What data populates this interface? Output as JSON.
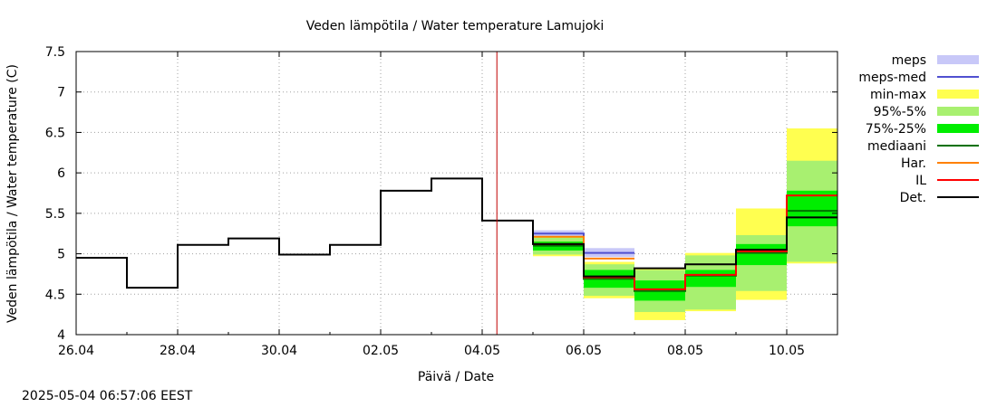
{
  "chart_data": {
    "type": "line",
    "title": "Veden lämpötila / Water temperature Lamujoki",
    "xlabel": "Päivä / Date",
    "ylabel": "Veden lämpötila / Water temperature (C)",
    "ylim": [
      4,
      7.5
    ],
    "xlim": [
      "2025-04-26",
      "2025-05-11"
    ],
    "x_tick_labels": [
      "26.04",
      "28.04",
      "30.04",
      "02.05",
      "04.05",
      "06.05",
      "08.05",
      "10.05"
    ],
    "x_tick_dates": [
      "2025-04-26",
      "2025-04-28",
      "2025-04-30",
      "2025-05-02",
      "2025-05-04",
      "2025-05-06",
      "2025-05-08",
      "2025-05-10"
    ],
    "y_ticks": [
      4,
      4.5,
      5,
      5.5,
      6,
      6.5,
      7,
      7.5
    ],
    "y_tick_labels": [
      "4",
      "4.5",
      "5",
      "5.5",
      "6",
      "6.5",
      "7",
      "7.5"
    ],
    "grid": true,
    "now_marker": "2025-05-04 06:57",
    "legend": {
      "placement": "right",
      "entries": [
        {
          "label": "meps",
          "color": "#c8c8f8",
          "kind": "band"
        },
        {
          "label": "meps-med",
          "color": "#5050d0",
          "kind": "line"
        },
        {
          "label": "min-max",
          "color": "#ffff50",
          "kind": "band"
        },
        {
          "label": "95%-5%",
          "color": "#a8f070",
          "kind": "band"
        },
        {
          "label": "75%-25%",
          "color": "#00ee00",
          "kind": "band"
        },
        {
          "label": "mediaani",
          "color": "#007000",
          "kind": "line"
        },
        {
          "label": "Har.",
          "color": "#ff8000",
          "kind": "line"
        },
        {
          "label": "IL",
          "color": "#ff0000",
          "kind": "line"
        },
        {
          "label": "Det.",
          "color": "#000000",
          "kind": "line"
        }
      ]
    },
    "observed": {
      "name": "Det.",
      "steps": [
        {
          "start": "2025-04-26",
          "end": "2025-04-27",
          "value": 4.95
        },
        {
          "start": "2025-04-27",
          "end": "2025-04-28",
          "value": 4.58
        },
        {
          "start": "2025-04-28",
          "end": "2025-04-29",
          "value": 5.11
        },
        {
          "start": "2025-04-29",
          "end": "2025-04-30",
          "value": 5.19
        },
        {
          "start": "2025-04-30",
          "end": "2025-05-01",
          "value": 4.99
        },
        {
          "start": "2025-05-01",
          "end": "2025-05-02",
          "value": 5.11
        },
        {
          "start": "2025-05-02",
          "end": "2025-05-03",
          "value": 5.78
        },
        {
          "start": "2025-05-03",
          "end": "2025-05-04",
          "value": 5.93
        },
        {
          "start": "2025-05-04",
          "end": "2025-05-05",
          "value": 5.41
        }
      ]
    },
    "forecast_days": [
      "2025-05-05",
      "2025-05-06",
      "2025-05-07",
      "2025-05-08",
      "2025-05-09",
      "2025-05-10",
      "2025-05-11"
    ],
    "series": [
      {
        "name": "min-max",
        "kind": "band",
        "color": "#ffff50",
        "low": [
          4.97,
          4.45,
          4.18,
          4.29,
          4.43,
          4.88
        ],
        "high": [
          5.22,
          4.9,
          4.82,
          5.01,
          5.56,
          6.55
        ]
      },
      {
        "name": "95%-5%",
        "kind": "band",
        "color": "#a8f070",
        "low": [
          4.99,
          4.48,
          4.28,
          4.31,
          4.54,
          4.9
        ],
        "high": [
          5.2,
          4.87,
          4.8,
          4.98,
          5.23,
          6.15
        ]
      },
      {
        "name": "75%-25%",
        "kind": "band",
        "color": "#00ee00",
        "low": [
          5.04,
          4.58,
          4.42,
          4.59,
          4.86,
          5.34
        ],
        "high": [
          5.15,
          4.8,
          4.67,
          4.8,
          5.12,
          5.78
        ]
      },
      {
        "name": "meps",
        "kind": "band",
        "color": "#c8c8f8",
        "low": [
          5.21,
          4.96,
          null,
          null,
          null,
          null
        ],
        "high": [
          5.29,
          5.07,
          null,
          null,
          null,
          null
        ]
      },
      {
        "name": "meps-med",
        "kind": "line",
        "color": "#5050d0",
        "values": [
          5.25,
          5.01,
          null,
          null,
          null,
          null
        ]
      },
      {
        "name": "Har.",
        "kind": "line",
        "color": "#ff8000",
        "values": [
          5.21,
          4.94,
          null,
          null,
          null,
          null
        ]
      },
      {
        "name": "mediaani",
        "kind": "line",
        "color": "#007000",
        "values": [
          5.1,
          4.69,
          4.54,
          4.73,
          5.01,
          5.53
        ]
      },
      {
        "name": "IL",
        "kind": "line",
        "color": "#ff0000",
        "values": [
          5.12,
          4.71,
          4.56,
          4.74,
          5.03,
          5.72
        ]
      },
      {
        "name": "Det.",
        "kind": "line",
        "color": "#000000",
        "values": [
          5.12,
          4.72,
          4.82,
          4.87,
          5.05,
          5.45
        ]
      }
    ]
  },
  "timestamp": "2025-05-04  06:57:06 EEST"
}
